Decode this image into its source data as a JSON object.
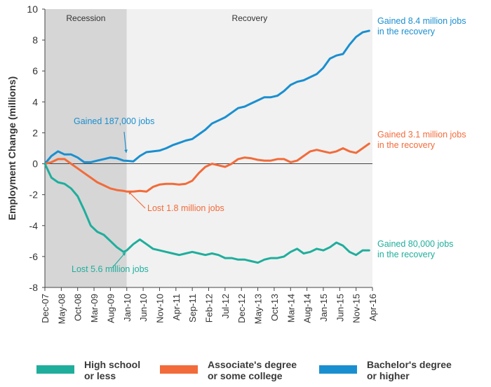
{
  "chart_data": {
    "type": "line",
    "ylabel": "Employment Change (millions)",
    "ylim": [
      -8,
      10
    ],
    "yticks": [
      10,
      8,
      6,
      4,
      2,
      0,
      -2,
      -4,
      -6,
      -8
    ],
    "x_tick_labels": [
      "Dec-07",
      "May-08",
      "Oct-08",
      "Mar-09",
      "Aug-09",
      "Jan-10",
      "Jun-10",
      "Nov-10",
      "Apr-11",
      "Sep-11",
      "Feb-12",
      "Jul-12",
      "Dec-12",
      "May-13",
      "Oct-13",
      "Mar-14",
      "Aug-14",
      "Jan-15",
      "Jun-15",
      "Nov-15",
      "Apr-16"
    ],
    "periods": [
      {
        "label": "Recession",
        "start": "Dec-07",
        "end": "Jan-10",
        "color": "#d6d6d6"
      },
      {
        "label": "Recovery",
        "start": "Jan-10",
        "end": "Apr-16",
        "color": "#f1f1f1"
      }
    ],
    "series": [
      {
        "name": "Bachelor's degree or higher",
        "color": "#1a8fd0",
        "x": [
          "Dec-07",
          "Feb-08",
          "Apr-08",
          "Jun-08",
          "Aug-08",
          "Oct-08",
          "Dec-08",
          "Feb-09",
          "Apr-09",
          "Jun-09",
          "Aug-09",
          "Oct-09",
          "Dec-09",
          "Jan-10",
          "Mar-10",
          "May-10",
          "Jul-10",
          "Sep-10",
          "Nov-10",
          "Jan-11",
          "Mar-11",
          "May-11",
          "Jul-11",
          "Sep-11",
          "Nov-11",
          "Jan-12",
          "Mar-12",
          "May-12",
          "Jul-12",
          "Sep-12",
          "Nov-12",
          "Jan-13",
          "Mar-13",
          "May-13",
          "Jul-13",
          "Sep-13",
          "Nov-13",
          "Jan-14",
          "Mar-14",
          "May-14",
          "Jul-14",
          "Sep-14",
          "Nov-14",
          "Jan-15",
          "Mar-15",
          "May-15",
          "Jul-15",
          "Sep-15",
          "Nov-15",
          "Jan-16",
          "Mar-16"
        ],
        "values": [
          0,
          0.5,
          0.8,
          0.6,
          0.6,
          0.4,
          0.1,
          0.1,
          0.2,
          0.3,
          0.4,
          0.35,
          0.2,
          0.19,
          0.15,
          0.5,
          0.75,
          0.8,
          0.85,
          1.0,
          1.2,
          1.35,
          1.5,
          1.6,
          1.9,
          2.2,
          2.6,
          2.8,
          3.0,
          3.3,
          3.6,
          3.7,
          3.9,
          4.1,
          4.3,
          4.3,
          4.4,
          4.7,
          5.1,
          5.3,
          5.4,
          5.6,
          5.8,
          6.2,
          6.8,
          7.0,
          7.1,
          7.7,
          8.2,
          8.5,
          8.6
        ]
      },
      {
        "name": "Associate's degree or some college",
        "color": "#f26b3a",
        "x": [
          "Dec-07",
          "Feb-08",
          "Apr-08",
          "Jun-08",
          "Aug-08",
          "Oct-08",
          "Dec-08",
          "Feb-09",
          "Apr-09",
          "Jun-09",
          "Aug-09",
          "Oct-09",
          "Dec-09",
          "Jan-10",
          "Mar-10",
          "May-10",
          "Jul-10",
          "Sep-10",
          "Nov-10",
          "Jan-11",
          "Mar-11",
          "May-11",
          "Jul-11",
          "Sep-11",
          "Nov-11",
          "Jan-12",
          "Mar-12",
          "May-12",
          "Jul-12",
          "Sep-12",
          "Nov-12",
          "Jan-13",
          "Mar-13",
          "May-13",
          "Jul-13",
          "Sep-13",
          "Nov-13",
          "Jan-14",
          "Mar-14",
          "May-14",
          "Jul-14",
          "Sep-14",
          "Nov-14",
          "Jan-15",
          "Mar-15",
          "May-15",
          "Jul-15",
          "Sep-15",
          "Nov-15",
          "Jan-16",
          "Mar-16"
        ],
        "values": [
          0,
          0.1,
          0.3,
          0.3,
          0.0,
          -0.3,
          -0.6,
          -0.9,
          -1.2,
          -1.4,
          -1.6,
          -1.7,
          -1.75,
          -1.8,
          -1.8,
          -1.75,
          -1.8,
          -1.5,
          -1.35,
          -1.3,
          -1.3,
          -1.35,
          -1.3,
          -1.1,
          -0.6,
          -0.2,
          0.0,
          -0.1,
          -0.2,
          0.0,
          0.3,
          0.4,
          0.35,
          0.25,
          0.2,
          0.2,
          0.3,
          0.3,
          0.1,
          0.2,
          0.5,
          0.8,
          0.9,
          0.8,
          0.7,
          0.8,
          1.0,
          0.8,
          0.7,
          1.0,
          1.3
        ]
      },
      {
        "name": "High school or less",
        "color": "#1fae9c",
        "x": [
          "Dec-07",
          "Feb-08",
          "Apr-08",
          "Jun-08",
          "Aug-08",
          "Oct-08",
          "Dec-08",
          "Feb-09",
          "Apr-09",
          "Jun-09",
          "Aug-09",
          "Oct-09",
          "Dec-09",
          "Jan-10",
          "Mar-10",
          "May-10",
          "Jul-10",
          "Sep-10",
          "Nov-10",
          "Jan-11",
          "Mar-11",
          "May-11",
          "Jul-11",
          "Sep-11",
          "Nov-11",
          "Jan-12",
          "Mar-12",
          "May-12",
          "Jul-12",
          "Sep-12",
          "Nov-12",
          "Jan-13",
          "Mar-13",
          "May-13",
          "Jul-13",
          "Sep-13",
          "Nov-13",
          "Jan-14",
          "Mar-14",
          "May-14",
          "Jul-14",
          "Sep-14",
          "Nov-14",
          "Jan-15",
          "Mar-15",
          "May-15",
          "Jul-15",
          "Sep-15",
          "Nov-15",
          "Jan-16",
          "Mar-16"
        ],
        "values": [
          0,
          -0.9,
          -1.2,
          -1.3,
          -1.6,
          -2.1,
          -3.0,
          -4.0,
          -4.4,
          -4.6,
          -5.0,
          -5.4,
          -5.7,
          -5.6,
          -5.2,
          -4.9,
          -5.2,
          -5.5,
          -5.6,
          -5.7,
          -5.8,
          -5.9,
          -5.8,
          -5.7,
          -5.8,
          -5.9,
          -5.8,
          -5.9,
          -6.1,
          -6.1,
          -6.2,
          -6.2,
          -6.3,
          -6.4,
          -6.2,
          -6.1,
          -6.1,
          -6.0,
          -5.7,
          -5.5,
          -5.8,
          -5.7,
          -5.5,
          -5.6,
          -5.4,
          -5.1,
          -5.3,
          -5.7,
          -5.9,
          -5.6,
          -5.6
        ]
      }
    ],
    "annotations": [
      {
        "text": "Gained 187,000 jobs",
        "color": "#1a8fd0"
      },
      {
        "text": "Lost 1.8 million jobs",
        "color": "#f26b3a"
      },
      {
        "text": "Lost 5.6 million jobs",
        "color": "#1fae9c"
      },
      {
        "text": "Gained 8.4 million jobs\nin the recovery",
        "color": "#1a8fd0"
      },
      {
        "text": "Gained 3.1 million jobs\nin the recovery",
        "color": "#f26b3a"
      },
      {
        "text": "Gained 80,000 jobs\nin the recovery",
        "color": "#1fae9c"
      }
    ]
  },
  "legend": [
    {
      "label": "High school\nor less",
      "color": "#1fae9c"
    },
    {
      "label": "Associate's degree\nor some college",
      "color": "#f26b3a"
    },
    {
      "label": "Bachelor's degree\nor higher",
      "color": "#1a8fd0"
    }
  ]
}
